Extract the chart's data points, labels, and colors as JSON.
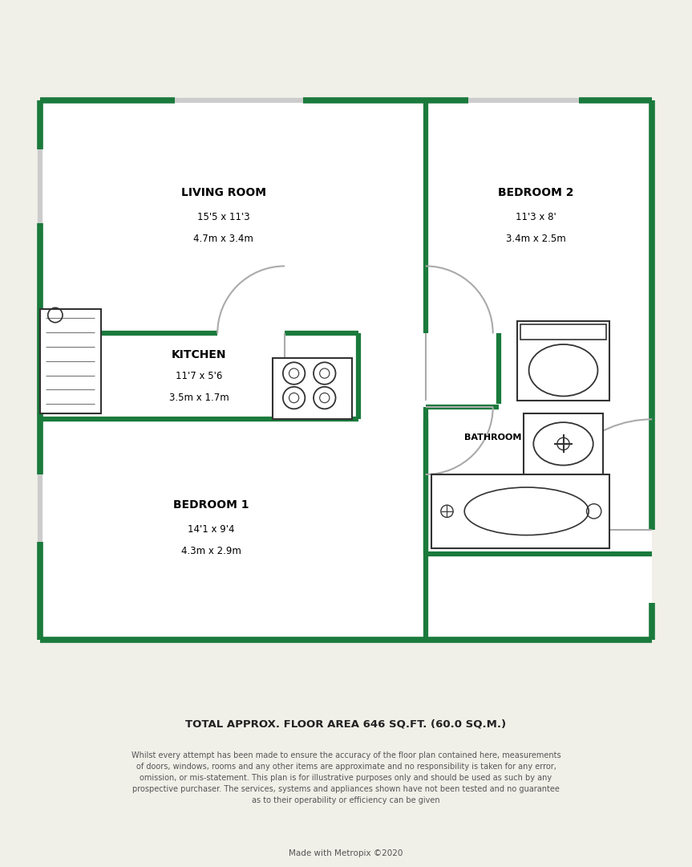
{
  "bg_color": "#f0efe8",
  "wall_color": "#1a7a3c",
  "floor_color": "#ffffff",
  "fixture_color": "#333333",
  "door_color": "#aaaaaa",
  "rooms": {
    "living_room": {
      "label": "LIVING ROOM",
      "dim1": "15'5 x 11'3",
      "dim2": "4.7m x 3.4m"
    },
    "bedroom2": {
      "label": "BEDROOM 2",
      "dim1": "11'3 x 8'",
      "dim2": "3.4m x 2.5m"
    },
    "kitchen": {
      "label": "KITCHEN",
      "dim1": "11'7 x 5'6",
      "dim2": "3.5m x 1.7m"
    },
    "bedroom1": {
      "label": "BEDROOM 1",
      "dim1": "14'1 x 9'4",
      "dim2": "4.3m x 2.9m"
    },
    "bathroom": {
      "label": "BATHROOM"
    }
  },
  "footer_title": "TOTAL APPROX. FLOOR AREA 646 SQ.FT. (60.0 SQ.M.)",
  "footer_text": "Whilst every attempt has been made to ensure the accuracy of the floor plan contained here, measurements\nof doors, windows, rooms and any other items are approximate and no responsibility is taken for any error,\nomission, or mis-statement. This plan is for illustrative purposes only and should be used as such by any\nprospective purchaser. The services, systems and appliances shown have not been tested and no guarantee\nas to their operability or efficiency can be given",
  "footer_credit": "Made with Metropix ©2020"
}
